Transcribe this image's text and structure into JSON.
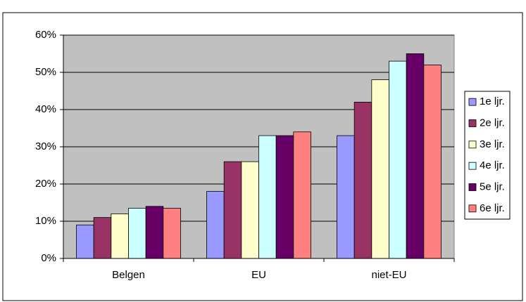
{
  "chart_data": {
    "type": "bar",
    "categories": [
      "Belgen",
      "EU",
      "niet-EU"
    ],
    "series": [
      {
        "name": "1e ljr.",
        "color": "#9999ff",
        "values": [
          9,
          18,
          33
        ]
      },
      {
        "name": "2e ljr.",
        "color": "#993366",
        "values": [
          11,
          26,
          42
        ]
      },
      {
        "name": "3e ljr.",
        "color": "#ffffcc",
        "values": [
          12,
          26,
          48
        ]
      },
      {
        "name": "4e ljr.",
        "color": "#ccffff",
        "values": [
          13.5,
          33,
          53
        ]
      },
      {
        "name": "5e ljr.",
        "color": "#660066",
        "values": [
          14,
          33,
          55
        ]
      },
      {
        "name": "6e ljr.",
        "color": "#ff8080",
        "values": [
          13.5,
          34,
          52
        ]
      }
    ],
    "ylim": [
      0,
      60
    ],
    "yticks": [
      {
        "value": 0,
        "label": "0%"
      },
      {
        "value": 10,
        "label": "10%"
      },
      {
        "value": 20,
        "label": "20%"
      },
      {
        "value": 30,
        "label": "30%"
      },
      {
        "value": 40,
        "label": "40%"
      },
      {
        "value": 50,
        "label": "50%"
      },
      {
        "value": 60,
        "label": "60%"
      }
    ],
    "grid": true,
    "plot_background": "#c0c0c0",
    "legend": "right"
  }
}
